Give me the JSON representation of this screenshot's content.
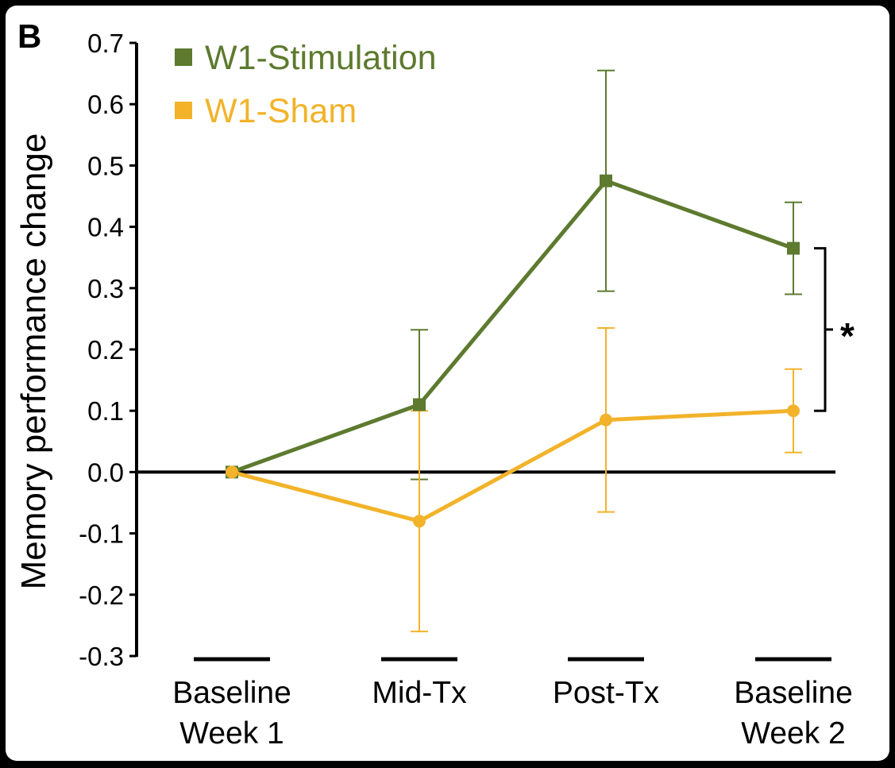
{
  "panel_label": "B",
  "chart_data": {
    "type": "line",
    "ylabel": "Memory performance change",
    "xlabel": "",
    "ylim": [
      -0.3,
      0.7
    ],
    "yticks": [
      "0.7",
      "0.6",
      "0.5",
      "0.4",
      "0.3",
      "0.2",
      "0.1",
      "0.0",
      "-0.1",
      "-0.2",
      "-0.3"
    ],
    "categories": [
      {
        "line1": "Baseline",
        "line2": "Week 1"
      },
      {
        "line1": "Mid-Tx",
        "line2": ""
      },
      {
        "line1": "Post-Tx",
        "line2": ""
      },
      {
        "line1": "Baseline",
        "line2": "Week 2"
      }
    ],
    "legend_position": "top-left",
    "grid": false,
    "series": [
      {
        "name": "W1-Stimulation",
        "color": "#5d7a2f",
        "marker": "square",
        "values": [
          0.0,
          0.11,
          0.475,
          0.365
        ],
        "error": [
          0.0,
          0.122,
          0.18,
          0.075
        ]
      },
      {
        "name": "W1-Sham",
        "color": "#f2b32a",
        "marker": "circle",
        "values": [
          0.0,
          -0.08,
          0.085,
          0.1
        ],
        "error": [
          0.0,
          0.18,
          0.15,
          0.068
        ]
      }
    ],
    "annotations": [
      {
        "text": "*",
        "meaning": "significance bracket between series at Baseline Week 2"
      }
    ]
  }
}
